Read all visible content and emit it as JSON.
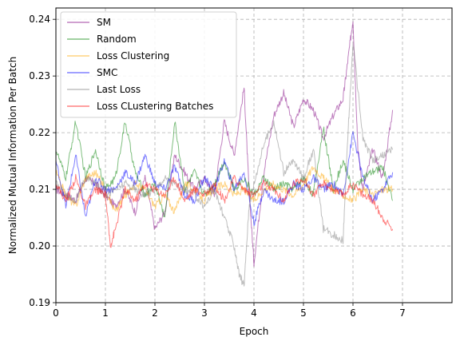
{
  "chart_data": {
    "type": "line",
    "title": "",
    "xlabel": "Epoch",
    "ylabel": "Normalized Mutual Information Per Batch",
    "xlim": [
      0,
      8
    ],
    "ylim": [
      0.19,
      0.242
    ],
    "xticks": [
      0,
      1,
      2,
      3,
      4,
      5,
      6,
      7
    ],
    "xtick_labels": [
      "0",
      "1",
      "2",
      "3",
      "4",
      "5",
      "6",
      "7"
    ],
    "yticks": [
      0.19,
      0.2,
      0.21,
      0.22,
      0.23,
      0.24
    ],
    "ytick_labels": [
      "0.19",
      "0.20",
      "0.21",
      "0.22",
      "0.23",
      "0.24"
    ],
    "grid": true,
    "legend_position": "top-left",
    "series": [
      {
        "name": "SM",
        "color": "#800080",
        "x": [
          0,
          0.2,
          0.4,
          0.6,
          0.8,
          1.0,
          1.2,
          1.4,
          1.6,
          1.8,
          2.0,
          2.2,
          2.4,
          2.6,
          2.8,
          3.0,
          3.2,
          3.4,
          3.6,
          3.8,
          3.9,
          4.0,
          4.2,
          4.4,
          4.6,
          4.8,
          5.0,
          5.2,
          5.4,
          5.6,
          5.8,
          5.9,
          6.0,
          6.1,
          6.2,
          6.4,
          6.6,
          6.8
        ],
        "y": [
          0.21,
          0.209,
          0.208,
          0.212,
          0.211,
          0.209,
          0.207,
          0.21,
          0.206,
          0.212,
          0.203,
          0.206,
          0.216,
          0.213,
          0.21,
          0.212,
          0.209,
          0.222,
          0.216,
          0.228,
          0.21,
          0.197,
          0.213,
          0.223,
          0.227,
          0.221,
          0.226,
          0.224,
          0.219,
          0.223,
          0.226,
          0.233,
          0.24,
          0.217,
          0.21,
          0.217,
          0.212,
          0.224
        ]
      },
      {
        "name": "Random",
        "color": "#008000",
        "x": [
          0,
          0.2,
          0.4,
          0.6,
          0.8,
          1.0,
          1.2,
          1.4,
          1.6,
          1.8,
          2.0,
          2.2,
          2.4,
          2.6,
          2.8,
          3.0,
          3.2,
          3.4,
          3.6,
          3.8,
          4.0,
          4.2,
          4.4,
          4.6,
          4.8,
          5.0,
          5.2,
          5.4,
          5.6,
          5.8,
          6.0,
          6.2,
          6.4,
          6.6,
          6.8
        ],
        "y": [
          0.217,
          0.212,
          0.222,
          0.212,
          0.217,
          0.21,
          0.212,
          0.222,
          0.213,
          0.209,
          0.211,
          0.205,
          0.222,
          0.21,
          0.213,
          0.209,
          0.211,
          0.215,
          0.21,
          0.212,
          0.209,
          0.212,
          0.21,
          0.211,
          0.21,
          0.212,
          0.209,
          0.221,
          0.21,
          0.215,
          0.21,
          0.212,
          0.213,
          0.214,
          0.208
        ]
      },
      {
        "name": "Loss Clustering",
        "color": "#FFA500",
        "x": [
          0,
          0.2,
          0.4,
          0.6,
          0.8,
          1.0,
          1.2,
          1.4,
          1.6,
          1.8,
          2.0,
          2.2,
          2.4,
          2.6,
          2.8,
          3.0,
          3.2,
          3.4,
          3.6,
          3.8,
          4.0,
          4.2,
          4.4,
          4.6,
          4.8,
          5.0,
          5.2,
          5.4,
          5.6,
          5.8,
          6.0,
          6.2,
          6.4,
          6.6,
          6.8
        ],
        "y": [
          0.213,
          0.209,
          0.207,
          0.212,
          0.213,
          0.21,
          0.206,
          0.209,
          0.211,
          0.21,
          0.207,
          0.209,
          0.206,
          0.211,
          0.21,
          0.208,
          0.21,
          0.211,
          0.209,
          0.21,
          0.208,
          0.21,
          0.211,
          0.21,
          0.209,
          0.211,
          0.214,
          0.212,
          0.21,
          0.209,
          0.208,
          0.21,
          0.209,
          0.21,
          0.21
        ]
      },
      {
        "name": "SMC",
        "color": "#0000FF",
        "x": [
          0,
          0.2,
          0.4,
          0.6,
          0.8,
          1.0,
          1.2,
          1.4,
          1.6,
          1.8,
          2.0,
          2.2,
          2.4,
          2.6,
          2.8,
          3.0,
          3.2,
          3.4,
          3.6,
          3.8,
          4.0,
          4.2,
          4.4,
          4.6,
          4.8,
          5.0,
          5.2,
          5.4,
          5.6,
          5.8,
          6.0,
          6.2,
          6.4,
          6.6,
          6.8
        ],
        "y": [
          0.215,
          0.207,
          0.216,
          0.205,
          0.212,
          0.21,
          0.21,
          0.213,
          0.211,
          0.216,
          0.211,
          0.21,
          0.214,
          0.209,
          0.208,
          0.212,
          0.21,
          0.215,
          0.21,
          0.213,
          0.204,
          0.21,
          0.208,
          0.208,
          0.211,
          0.21,
          0.212,
          0.21,
          0.211,
          0.209,
          0.22,
          0.212,
          0.208,
          0.21,
          0.213
        ]
      },
      {
        "name": "Last Loss",
        "color": "#808080",
        "x": [
          0,
          0.2,
          0.4,
          0.6,
          0.8,
          1.0,
          1.2,
          1.4,
          1.6,
          1.8,
          2.0,
          2.2,
          2.4,
          2.6,
          2.8,
          3.0,
          3.2,
          3.4,
          3.6,
          3.7,
          3.8,
          3.9,
          4.0,
          4.2,
          4.4,
          4.6,
          4.8,
          5.0,
          5.2,
          5.4,
          5.6,
          5.8,
          5.9,
          6.0,
          6.2,
          6.4,
          6.6,
          6.8
        ],
        "y": [
          0.211,
          0.209,
          0.208,
          0.212,
          0.211,
          0.209,
          0.21,
          0.211,
          0.21,
          0.209,
          0.21,
          0.212,
          0.211,
          0.21,
          0.209,
          0.207,
          0.21,
          0.205,
          0.2,
          0.195,
          0.193,
          0.207,
          0.211,
          0.218,
          0.222,
          0.213,
          0.215,
          0.212,
          0.217,
          0.203,
          0.202,
          0.201,
          0.22,
          0.236,
          0.219,
          0.215,
          0.216,
          0.217
        ]
      },
      {
        "name": "Loss CLustering Batches",
        "color": "#FF0000",
        "x": [
          0,
          0.2,
          0.4,
          0.6,
          0.8,
          1.0,
          1.1,
          1.2,
          1.4,
          1.6,
          1.8,
          2.0,
          2.2,
          2.4,
          2.6,
          2.8,
          3.0,
          3.2,
          3.4,
          3.6,
          3.8,
          4.0,
          4.2,
          4.4,
          4.6,
          4.8,
          5.0,
          5.2,
          5.4,
          5.6,
          5.8,
          6.0,
          6.2,
          6.4,
          6.6,
          6.8
        ],
        "y": [
          0.211,
          0.208,
          0.212,
          0.207,
          0.21,
          0.209,
          0.2,
          0.203,
          0.21,
          0.208,
          0.211,
          0.21,
          0.209,
          0.212,
          0.208,
          0.21,
          0.209,
          0.211,
          0.208,
          0.212,
          0.21,
          0.209,
          0.211,
          0.21,
          0.208,
          0.211,
          0.212,
          0.209,
          0.211,
          0.21,
          0.209,
          0.211,
          0.209,
          0.208,
          0.205,
          0.203
        ]
      }
    ]
  }
}
